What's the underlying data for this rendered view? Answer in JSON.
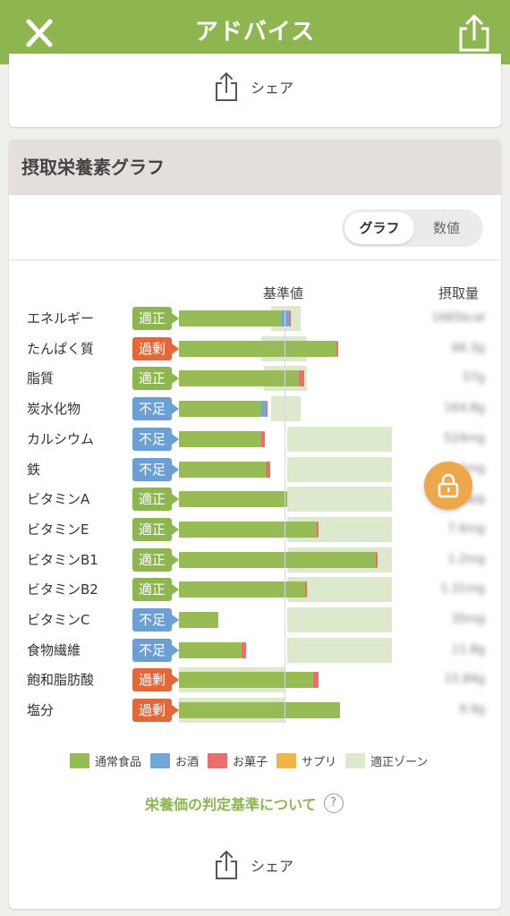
{
  "header": {
    "title": "アドバイス"
  },
  "share_label": "シェア",
  "section_title": "摂取栄養素グラフ",
  "toggle": {
    "graph": "グラフ",
    "numeric": "数値"
  },
  "columns": {
    "reference": "基準値",
    "intake": "摂取量"
  },
  "colors": {
    "header": "#8db651",
    "normal": "#97bc55",
    "alcohol": "#73a7d6",
    "snack": "#eb6e6e",
    "supplement": "#f0b545",
    "zone": "#dde9cc",
    "badge_ok": "#8db651",
    "badge_low": "#6aa0d4",
    "badge_over": "#e4673a"
  },
  "lock_icon": "lock-icon",
  "nutrients": [
    {
      "name": "エネルギー",
      "status": "適正",
      "status_type": "ok",
      "value": "1665kcal",
      "intake_pct": [
        52,
        4,
        1,
        0
      ],
      "zone": [
        47,
        62
      ]
    },
    {
      "name": "たんぱく質",
      "status": "過剰",
      "status_type": "over",
      "value": "66.3g",
      "intake_pct": [
        80,
        0,
        1,
        0
      ],
      "zone": [
        42,
        65
      ]
    },
    {
      "name": "脂質",
      "status": "適正",
      "status_type": "ok",
      "value": "57g",
      "intake_pct": [
        61,
        0,
        2.5,
        0
      ],
      "zone": [
        43,
        65
      ]
    },
    {
      "name": "炭水化物",
      "status": "不足",
      "status_type": "low",
      "value": "164.8g",
      "intake_pct": [
        42,
        2.5,
        0.5,
        0
      ],
      "zone": [
        47,
        62
      ]
    },
    {
      "name": "カルシウム",
      "status": "不足",
      "status_type": "low",
      "value": "524mg",
      "intake_pct": [
        42,
        0,
        1.5,
        0
      ],
      "zone": [
        55,
        108
      ]
    },
    {
      "name": "鉄",
      "status": "不足",
      "status_type": "low",
      "value": "5.6mg",
      "intake_pct": [
        44,
        0,
        2.5,
        0
      ],
      "zone": [
        55,
        108
      ]
    },
    {
      "name": "ビタミンA",
      "status": "適正",
      "status_type": "ok",
      "value": "640μg",
      "intake_pct": [
        55,
        0,
        0,
        0
      ],
      "zone": [
        55,
        108
      ]
    },
    {
      "name": "ビタミンE",
      "status": "適正",
      "status_type": "ok",
      "value": "7.6mg",
      "intake_pct": [
        70,
        0,
        1,
        0
      ],
      "zone": [
        55,
        108
      ]
    },
    {
      "name": "ビタミンB1",
      "status": "適正",
      "status_type": "ok",
      "value": "1.2mg",
      "intake_pct": [
        100,
        0,
        1,
        0
      ],
      "zone": [
        55,
        108
      ]
    },
    {
      "name": "ビタミンB2",
      "status": "適正",
      "status_type": "ok",
      "value": "1.31mg",
      "intake_pct": [
        64,
        0,
        1,
        0
      ],
      "zone": [
        55,
        108
      ]
    },
    {
      "name": "ビタミンC",
      "status": "不足",
      "status_type": "low",
      "value": "35mg",
      "intake_pct": [
        20,
        0,
        0,
        0
      ],
      "zone": [
        55,
        108
      ]
    },
    {
      "name": "食物繊維",
      "status": "不足",
      "status_type": "low",
      "value": "11.8g",
      "intake_pct": [
        32,
        0,
        2,
        0
      ],
      "zone": [
        55,
        108
      ]
    },
    {
      "name": "飽和脂肪酸",
      "status": "過剰",
      "status_type": "over",
      "value": "15.84g",
      "intake_pct": [
        68,
        0,
        3,
        0
      ],
      "zone": [
        0,
        54
      ]
    },
    {
      "name": "塩分",
      "status": "過剰",
      "status_type": "over",
      "value": "9.9g",
      "intake_pct": [
        82,
        0,
        0,
        0
      ],
      "zone": [
        0,
        54
      ]
    }
  ],
  "legend": [
    {
      "label": "通常食品",
      "color": "#97bc55"
    },
    {
      "label": "お酒",
      "color": "#73a7d6"
    },
    {
      "label": "お菓子",
      "color": "#eb6e6e"
    },
    {
      "label": "サプリ",
      "color": "#f0b545"
    },
    {
      "label": "適正ゾーン",
      "color": "#dde9cc"
    }
  ],
  "criteria_link": "栄養価の判定基準について",
  "help_icon_text": "?"
}
